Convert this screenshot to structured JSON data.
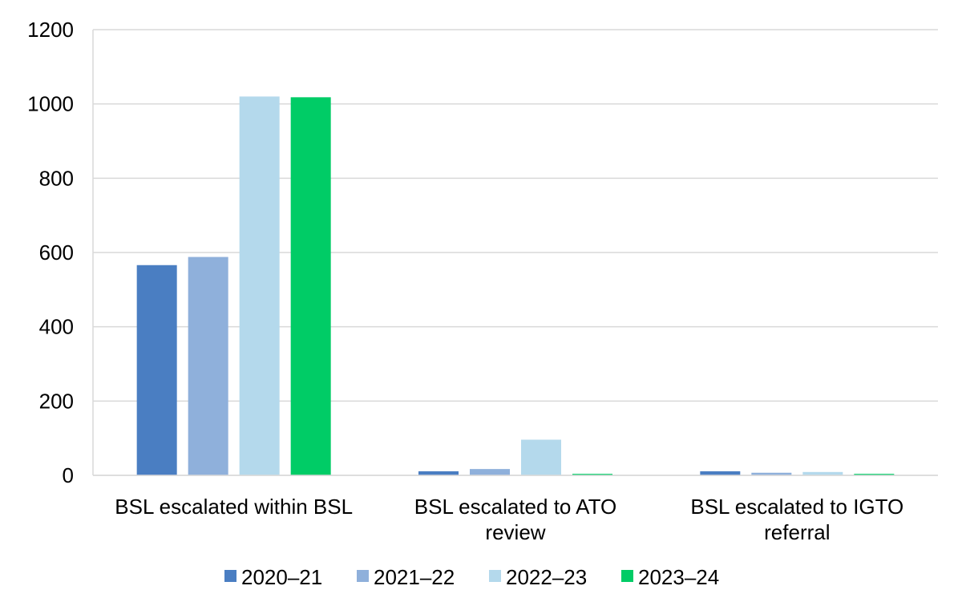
{
  "chart_data": {
    "type": "bar",
    "title": "",
    "xlabel": "",
    "ylabel": "",
    "ylim": [
      0,
      1200
    ],
    "yticks": [
      0,
      200,
      400,
      600,
      800,
      1000,
      1200
    ],
    "grid": "horizontal",
    "legend_position": "bottom",
    "categories": [
      [
        "BSL escalated within BSL"
      ],
      [
        "BSL escalated to ATO",
        "review"
      ],
      [
        "BSL escalated to IGTO",
        "referral"
      ]
    ],
    "series": [
      {
        "name": "2020–21",
        "color": "#4a7ec2",
        "values": [
          566,
          11,
          11
        ]
      },
      {
        "name": "2021–22",
        "color": "#8fb0db",
        "values": [
          588,
          17,
          7
        ]
      },
      {
        "name": "2022–23",
        "color": "#b4d9ec",
        "values": [
          1020,
          96,
          9
        ]
      },
      {
        "name": "2023–24",
        "color": "#00cc66",
        "values": [
          1018,
          4,
          4
        ]
      }
    ]
  }
}
